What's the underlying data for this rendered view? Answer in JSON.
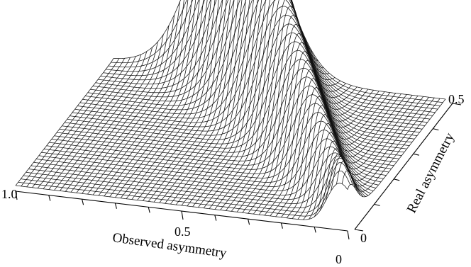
{
  "chart_data": {
    "type": "surface",
    "description_of_axes": {
      "x": "Observed asymmetry",
      "y": "Real asymmetry"
    },
    "x_axis": {
      "label": "Observed asymmetry",
      "range": [
        0,
        1.0
      ],
      "tick_labels": [
        "1.0",
        "0.5",
        "0"
      ],
      "tick_values": [
        1.0,
        0.5,
        0
      ]
    },
    "y_axis": {
      "label": "Real asymmetry",
      "range": [
        0,
        0.5
      ],
      "tick_labels": [
        "0",
        "0.5"
      ],
      "tick_values": [
        0,
        0.5
      ]
    },
    "surface": {
      "peak_x": 0.08,
      "peak_y": 0.5,
      "ridge": "peak located near observed asymmetry = real asymmetry, narrowing toward real asymmetry = 0"
    },
    "grid": true
  }
}
